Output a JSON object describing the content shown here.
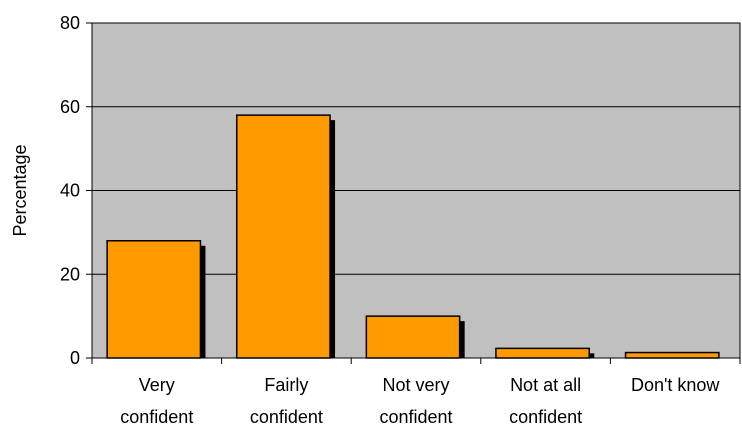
{
  "chart_data": {
    "type": "bar",
    "title": "",
    "xlabel": "",
    "ylabel": "Percentage",
    "ylim": [
      0,
      80
    ],
    "yticks": [
      0,
      20,
      40,
      60,
      80
    ],
    "grid": true,
    "categories": [
      [
        "Very",
        "confident"
      ],
      [
        "Fairly",
        "confident"
      ],
      [
        "Not very",
        "confident"
      ],
      [
        "Not at all",
        "confident"
      ],
      [
        "Don't know"
      ]
    ],
    "values": [
      28,
      58,
      10,
      2.3,
      1.3
    ],
    "colors": {
      "bar": "#ff9900",
      "bar_shadow": "#000000",
      "plot_background": "#c0c0c0",
      "gridline": "#000000",
      "axis": "#000000"
    }
  }
}
